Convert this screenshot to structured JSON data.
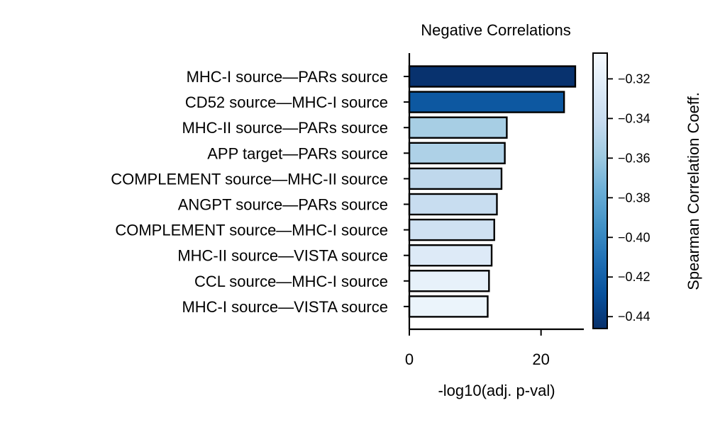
{
  "chart_data": {
    "type": "bar",
    "orientation": "horizontal",
    "title": "Negative Correlations",
    "xlabel": "-log10(adj. p-val)",
    "ylabel": "",
    "xlim": [
      0,
      26.5
    ],
    "xticks": [
      0,
      20
    ],
    "categories": [
      "MHC-I source—PARs source",
      "CD52 source—MHC-I source",
      "MHC-II source—PARs source",
      "APP target—PARs source",
      "COMPLEMENT source—MHC-II source",
      "ANGPT source—PARs source",
      "COMPLEMENT source—MHC-I source",
      "MHC-II source—VISTA source",
      "CCL source—MHC-I source",
      "MHC-I source—VISTA source"
    ],
    "values": [
      25.2,
      23.5,
      14.8,
      14.5,
      14.0,
      13.3,
      12.9,
      12.5,
      12.1,
      11.9
    ],
    "color_values": [
      -0.445,
      -0.425,
      -0.355,
      -0.352,
      -0.345,
      -0.34,
      -0.335,
      -0.325,
      -0.318,
      -0.315
    ],
    "colorbar": {
      "label": "Spearman Correlation Coeff.",
      "cmap": "Blues_r",
      "range": [
        -0.446,
        -0.307
      ],
      "ticks": [
        -0.32,
        -0.34,
        -0.36,
        -0.38,
        -0.4,
        -0.42,
        -0.44
      ],
      "tick_labels": [
        "−0.32",
        "−0.34",
        "−0.36",
        "−0.38",
        "−0.40",
        "−0.42",
        "−0.44"
      ]
    },
    "grid": false,
    "legend": "none"
  }
}
